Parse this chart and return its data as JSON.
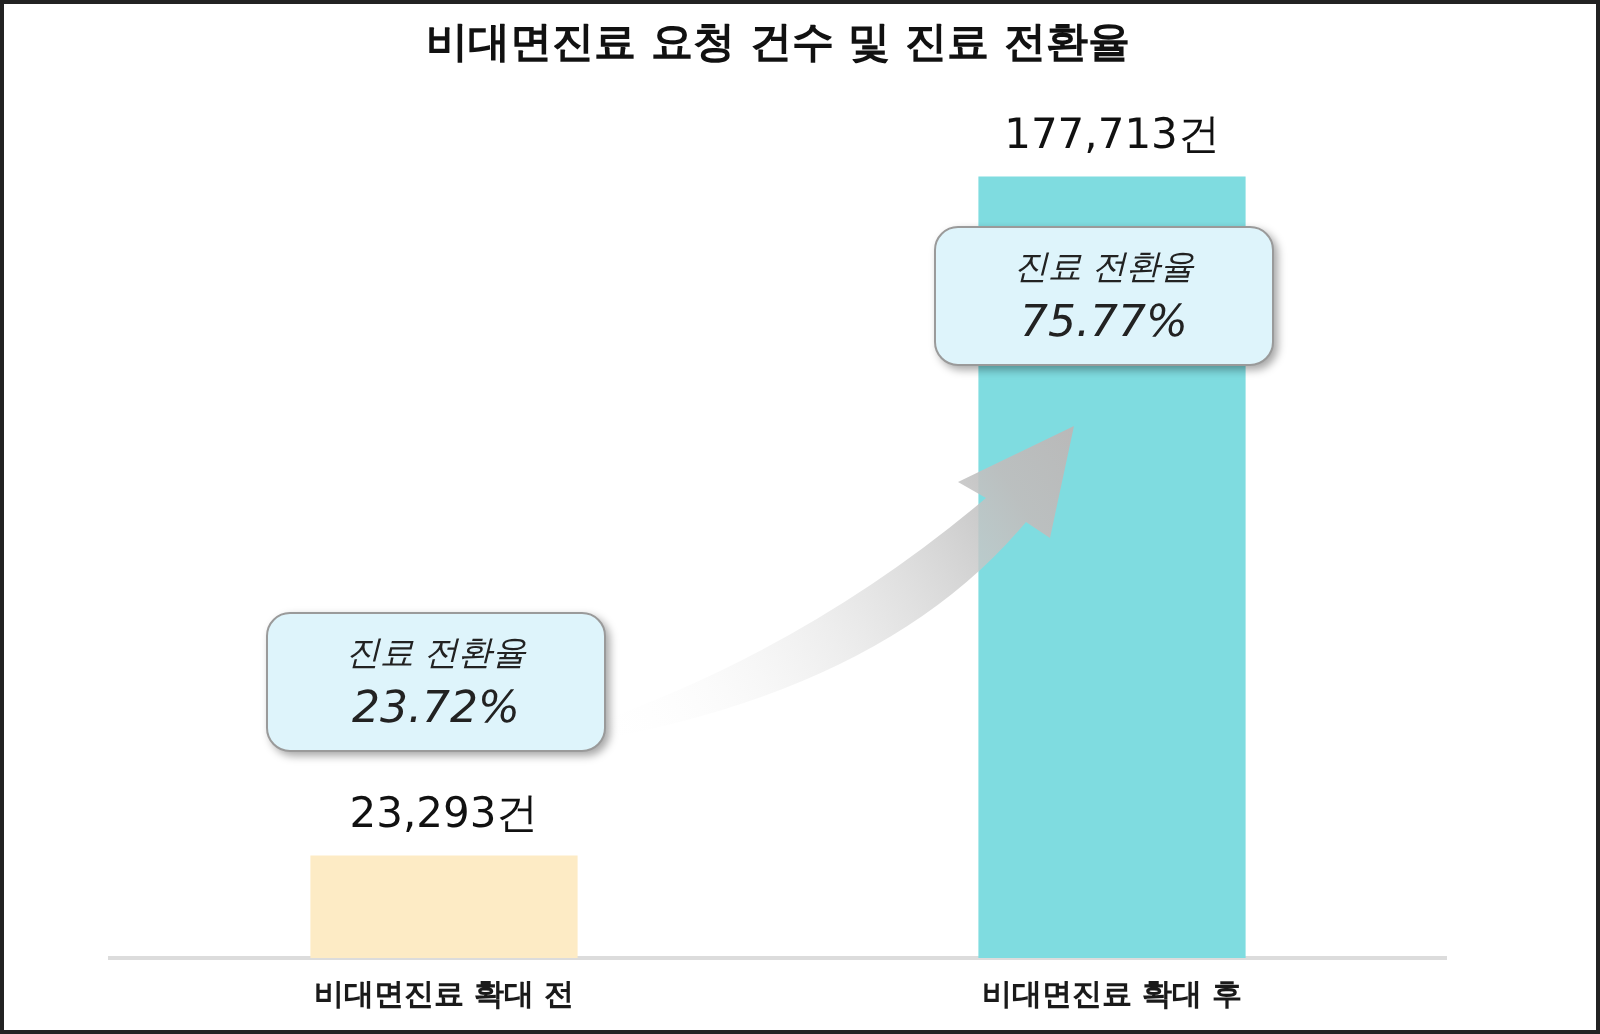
{
  "chart_data": {
    "type": "bar",
    "title": "비대면진료 요청 건수 및 진료 전환율",
    "categories": [
      "비대면진료 확대 전",
      "비대면진료 확대 후"
    ],
    "values": [
      23293,
      177713
    ],
    "colors": [
      "#fdebc5",
      "#7fdce0"
    ],
    "value_labels": [
      "23,293건",
      "177,713건"
    ],
    "annotations": [
      "진료 전환율\n23.72%",
      "진료 전환율\n75.77%"
    ]
  }
}
